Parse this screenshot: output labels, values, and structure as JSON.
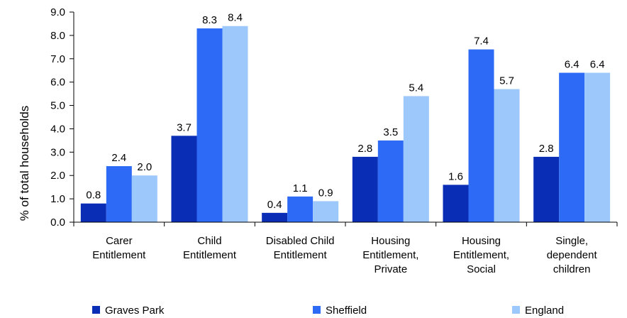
{
  "chart_data": {
    "type": "bar",
    "title": "",
    "ylabel": "% of total households",
    "xlabel": "",
    "ylim": [
      0,
      9.0
    ],
    "y_ticks": [
      "0.0",
      "1.0",
      "2.0",
      "3.0",
      "4.0",
      "5.0",
      "6.0",
      "7.0",
      "8.0",
      "9.0"
    ],
    "categories": [
      [
        "Carer",
        "Entitlement"
      ],
      [
        "Child",
        "Entitlement"
      ],
      [
        "Disabled Child",
        "Entitlement"
      ],
      [
        "Housing",
        "Entitlement,",
        "Private"
      ],
      [
        "Housing",
        "Entitlement,",
        "Social"
      ],
      [
        "Single,",
        "dependent",
        "children"
      ]
    ],
    "series": [
      {
        "name": "Graves Park",
        "color": "#0a2db5",
        "values": [
          0.8,
          3.7,
          0.4,
          2.8,
          1.6,
          2.8
        ]
      },
      {
        "name": "Sheffield",
        "color": "#2d6af5",
        "values": [
          2.4,
          8.3,
          1.1,
          3.5,
          7.4,
          6.4
        ]
      },
      {
        "name": "England",
        "color": "#9dc8fb",
        "values": [
          2.0,
          8.4,
          0.9,
          5.4,
          5.7,
          6.4
        ]
      }
    ],
    "legend_position": "bottom",
    "grid": false
  }
}
